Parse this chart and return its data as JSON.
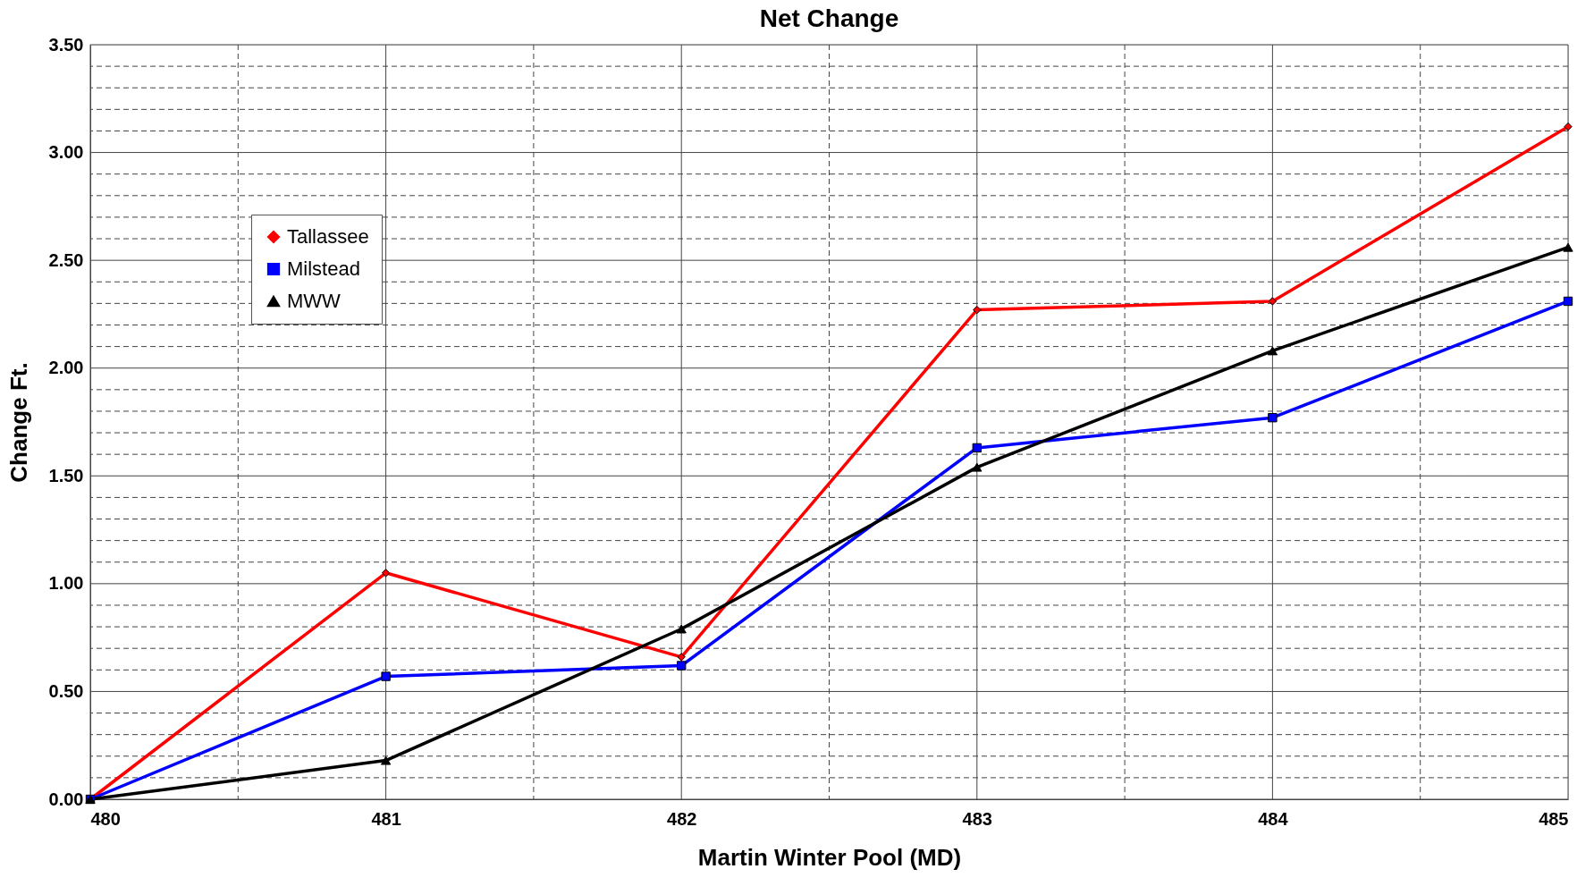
{
  "chart_data": {
    "type": "line",
    "title": "Net Change",
    "xlabel": "Martin Winter Pool (MD)",
    "ylabel": "Change Ft.",
    "x": [
      480,
      481,
      482,
      483,
      484,
      485
    ],
    "series": [
      {
        "name": "Tallassee",
        "color": "#ff0000",
        "marker": "diamond",
        "values": [
          0.0,
          1.05,
          0.66,
          2.27,
          2.31,
          3.12
        ]
      },
      {
        "name": "Milstead",
        "color": "#0000ff",
        "marker": "square",
        "values": [
          0.0,
          0.57,
          0.62,
          1.63,
          1.77,
          2.31
        ]
      },
      {
        "name": "MWW",
        "color": "#000000",
        "marker": "triangle",
        "values": [
          0.0,
          0.18,
          0.79,
          1.54,
          2.08,
          2.56
        ]
      }
    ],
    "xlim": [
      480,
      485
    ],
    "xticks": [
      480,
      {
        "value": 480.5,
        "label": null
      },
      481,
      {
        "value": 481.5,
        "label": null
      },
      482,
      {
        "value": 482.5,
        "label": null
      },
      483,
      {
        "value": 483.5,
        "label": null
      },
      484,
      {
        "value": 484.5,
        "label": null
      },
      485
    ],
    "ylim": [
      0,
      3.5
    ],
    "yticks": [
      {
        "value": 0,
        "label": "0.00"
      },
      {
        "value": 0.1,
        "label": null
      },
      {
        "value": 0.2,
        "label": null
      },
      {
        "value": 0.3,
        "label": null
      },
      {
        "value": 0.4,
        "label": null
      },
      {
        "value": 0.5,
        "label": "0.50"
      },
      {
        "value": 0.6,
        "label": null
      },
      {
        "value": 0.7,
        "label": null
      },
      {
        "value": 0.8,
        "label": null
      },
      {
        "value": 0.9,
        "label": null
      },
      {
        "value": 1,
        "label": "1.00"
      },
      {
        "value": 1.1,
        "label": null
      },
      {
        "value": 1.2,
        "label": null
      },
      {
        "value": 1.3,
        "label": null
      },
      {
        "value": 1.4,
        "label": null
      },
      {
        "value": 1.5,
        "label": "1.50"
      },
      {
        "value": 1.6,
        "label": null
      },
      {
        "value": 1.7,
        "label": null
      },
      {
        "value": 1.8,
        "label": null
      },
      {
        "value": 1.9,
        "label": null
      },
      {
        "value": 2,
        "label": "2.00"
      },
      {
        "value": 2.1,
        "label": null
      },
      {
        "value": 2.2,
        "label": null
      },
      {
        "value": 2.3,
        "label": null
      },
      {
        "value": 2.4,
        "label": null
      },
      {
        "value": 2.5,
        "label": "2.50"
      },
      {
        "value": 2.6,
        "label": null
      },
      {
        "value": 2.7,
        "label": null
      },
      {
        "value": 2.8,
        "label": null
      },
      {
        "value": 2.9,
        "label": null
      },
      {
        "value": 3,
        "label": "3.00"
      },
      {
        "value": 3.1,
        "label": null
      },
      {
        "value": 3.2,
        "label": null
      },
      {
        "value": 3.3,
        "label": null
      },
      {
        "value": 3.4,
        "label": null
      },
      {
        "value": 3.5,
        "label": "3.50"
      }
    ],
    "grid": true,
    "legend": "top left",
    "line_style": "solid"
  }
}
